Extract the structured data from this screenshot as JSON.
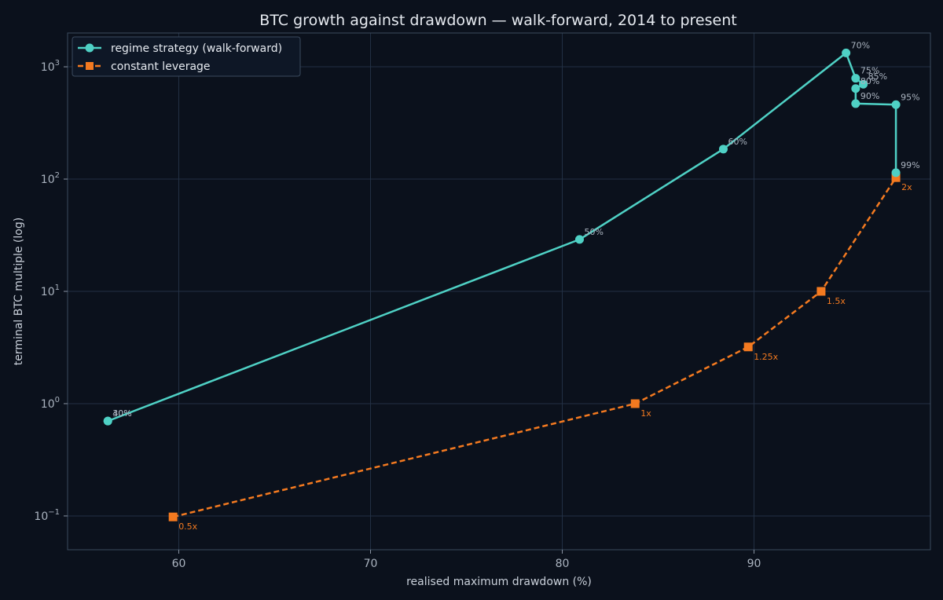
{
  "colors": {
    "background": "#0b111c",
    "regime": "#4fd1c5",
    "leverage": "#f47a20",
    "regime_label": "#aab3bf",
    "leverage_label": "#f47a20"
  },
  "chart_data": {
    "type": "line",
    "title": "BTC growth against drawdown — walk-forward, 2014 to present",
    "xlabel": "realised maximum drawdown (%)",
    "ylabel": "terminal BTC multiple (log)",
    "xlim": [
      54.2,
      99.2
    ],
    "ylim": [
      0.05,
      2000
    ],
    "yscale": "log",
    "grid": true,
    "legend_position": "top-left",
    "x_ticks": [
      {
        "value": 60,
        "label": "60"
      },
      {
        "value": 70,
        "label": "70"
      },
      {
        "value": 80,
        "label": "80"
      },
      {
        "value": 90,
        "label": "90"
      }
    ],
    "y_ticks": [
      {
        "value": 0.1,
        "base": "10",
        "exp": "−1"
      },
      {
        "value": 1,
        "base": "10",
        "exp": "0"
      },
      {
        "value": 10,
        "base": "10",
        "exp": "1"
      },
      {
        "value": 100,
        "base": "10",
        "exp": "2"
      },
      {
        "value": 1000,
        "base": "10",
        "exp": "3"
      }
    ],
    "series": [
      {
        "name": "regime strategy (walk-forward)",
        "marker": "circle",
        "style": "solid",
        "points": [
          {
            "x": 56.3,
            "y": 0.7,
            "label": "30%"
          },
          {
            "x": 56.3,
            "y": 0.7,
            "label": "40%"
          },
          {
            "x": 80.9,
            "y": 29,
            "label": "50%"
          },
          {
            "x": 88.4,
            "y": 185,
            "label": "60%"
          },
          {
            "x": 94.8,
            "y": 1330,
            "label": "70%"
          },
          {
            "x": 95.3,
            "y": 790,
            "label": "75%"
          },
          {
            "x": 95.7,
            "y": 700,
            "label": "85%"
          },
          {
            "x": 95.3,
            "y": 640,
            "label": "80%"
          },
          {
            "x": 95.3,
            "y": 470,
            "label": "90%"
          },
          {
            "x": 97.4,
            "y": 460,
            "label": "95%"
          },
          {
            "x": 97.4,
            "y": 114,
            "label": "99%"
          }
        ]
      },
      {
        "name": "constant leverage",
        "marker": "square",
        "style": "dashed",
        "points": [
          {
            "x": 59.7,
            "y": 0.098,
            "label": "0.5x"
          },
          {
            "x": 83.8,
            "y": 1.0,
            "label": "1x"
          },
          {
            "x": 89.7,
            "y": 3.2,
            "label": "1.25x"
          },
          {
            "x": 93.5,
            "y": 10,
            "label": "1.5x"
          },
          {
            "x": 97.4,
            "y": 103,
            "label": "2x"
          }
        ]
      }
    ]
  }
}
